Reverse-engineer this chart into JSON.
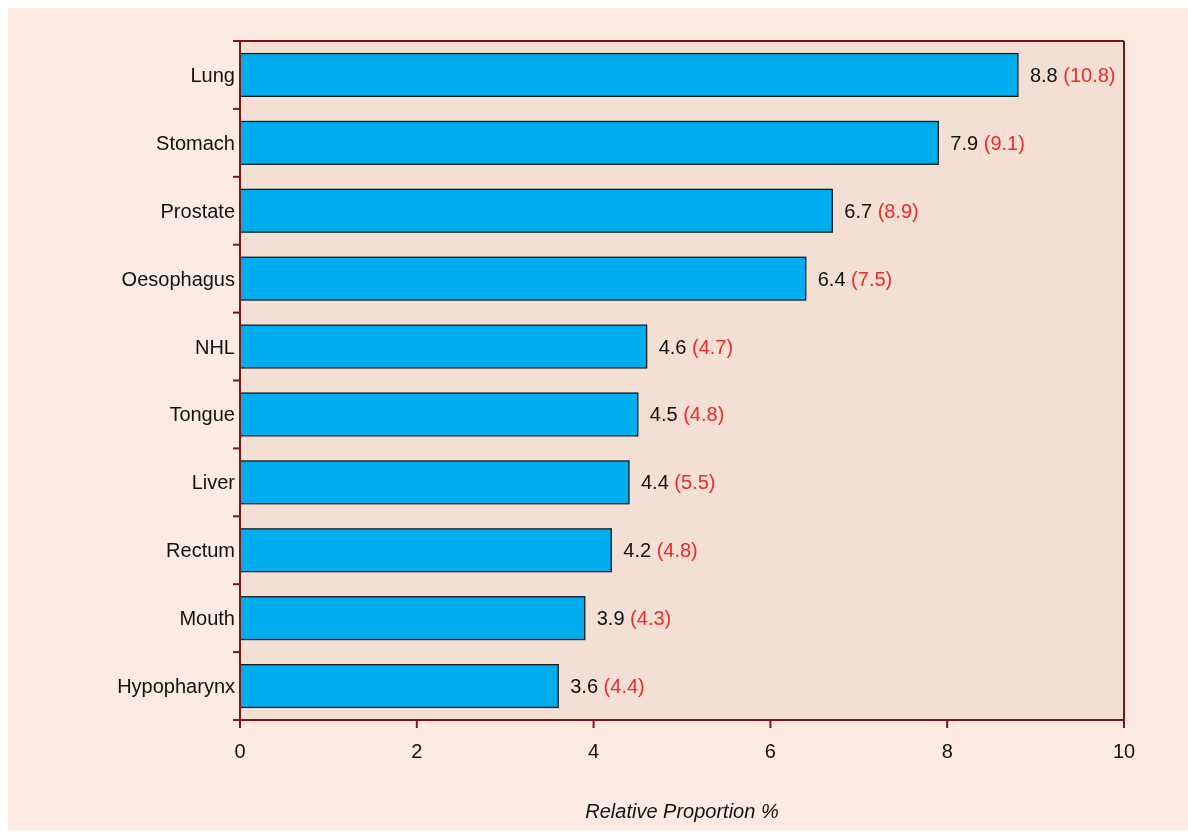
{
  "chart_data": {
    "type": "bar",
    "orientation": "horizontal",
    "xlabel": "Relative Proportion %",
    "categories": [
      "Lung",
      "Stomach",
      "Prostate",
      "Oesophagus",
      "NHL",
      "Tongue",
      "Liver",
      "Rectum",
      "Mouth",
      "Hypopharynx"
    ],
    "values": [
      8.8,
      7.9,
      6.7,
      6.4,
      4.6,
      4.5,
      4.4,
      4.2,
      3.9,
      3.6
    ],
    "value_labels": [
      "8.8 (10.8)",
      "7.9 (9.1)",
      "6.7 (8.9)",
      "6.4 (7.5)",
      "4.6 (4.7)",
      "4.5 (4.8)",
      "4.4 (5.5)",
      "4.2 (4.8)",
      "3.9 (4.3)",
      "3.6 (4.4)"
    ],
    "color": "#00aeef",
    "xlim": [
      0,
      10
    ],
    "xticks": [
      0,
      2,
      4,
      6,
      8,
      10
    ]
  }
}
